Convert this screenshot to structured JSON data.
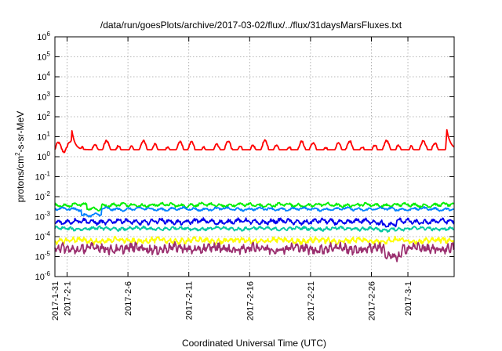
{
  "chart_data": {
    "type": "line",
    "title": "/data/run/goesPlots/archive/2017-03-02/flux/../flux/31daysMarsFluxes.txt",
    "xlabel": "Coordinated Universal Time (UTC)",
    "ylabel_main": "protons/cm",
    "ylabel_sup": "2",
    "ylabel_rest": "-s-sr-MeV",
    "y_scale": "log",
    "ylim_exponents": [
      -6,
      6
    ],
    "y_tick_exponents": [
      -6,
      -5,
      -4,
      -3,
      -2,
      -1,
      0,
      1,
      2,
      3,
      4,
      5,
      6
    ],
    "y_tick_base": "10",
    "xlim_days": [
      0,
      32.8
    ],
    "x_ticks": [
      {
        "label": "2017-1-31",
        "day": 0
      },
      {
        "label": "2017-2-1",
        "day": 1
      },
      {
        "label": "2017-2-6",
        "day": 6
      },
      {
        "label": "2017-2-11",
        "day": 11
      },
      {
        "label": "2017-2-16",
        "day": 16
      },
      {
        "label": "2017-2-21",
        "day": 21
      },
      {
        "label": "2017-2-26",
        "day": 26
      },
      {
        "label": "2017-3-1",
        "day": 29
      }
    ],
    "grid": true,
    "series": [
      {
        "color": "#ff0000",
        "base_log": 0.35,
        "amp": 0.28,
        "noise": 0.05,
        "period": 1.0,
        "events": [
          {
            "day": 1.4,
            "log": 1.3,
            "width": 0.25
          },
          {
            "day": 32.2,
            "log": 1.35,
            "width": 0.3
          }
        ],
        "dip": null
      },
      {
        "color": "#00ee00",
        "base_log": -2.42,
        "amp": 0.06,
        "noise": 0.05,
        "period": 0.8,
        "events": [],
        "dip": {
          "day": 3.2,
          "width": 0.6,
          "depth": 0.18
        }
      },
      {
        "color": "#0080ff",
        "base_log": -2.62,
        "amp": 0.05,
        "noise": 0.04,
        "period": 0.9,
        "events": [],
        "dip": {
          "day": 3.0,
          "width": 0.8,
          "depth": 0.3
        }
      },
      {
        "color": "#0000ee",
        "base_log": -3.25,
        "amp": 0.08,
        "noise": 0.07,
        "period": 0.7,
        "events": [],
        "dip": {
          "day": 27.5,
          "width": 0.6,
          "depth": 0.15
        }
      },
      {
        "color": "#00c8a0",
        "base_log": -3.6,
        "amp": 0.05,
        "noise": 0.05,
        "period": 0.6,
        "events": [],
        "dip": {
          "day": 27.0,
          "width": 0.5,
          "depth": 0.1
        }
      },
      {
        "color": "#ffff00",
        "base_log": -4.2,
        "amp": 0.08,
        "noise": 0.09,
        "period": 0.5,
        "events": [],
        "dip": null
      },
      {
        "color": "#9b3070",
        "base_log": -4.6,
        "amp": 0.12,
        "noise": 0.16,
        "period": 0.4,
        "events": [],
        "dip": {
          "day": 27.8,
          "width": 0.7,
          "depth": 0.35
        }
      }
    ]
  }
}
